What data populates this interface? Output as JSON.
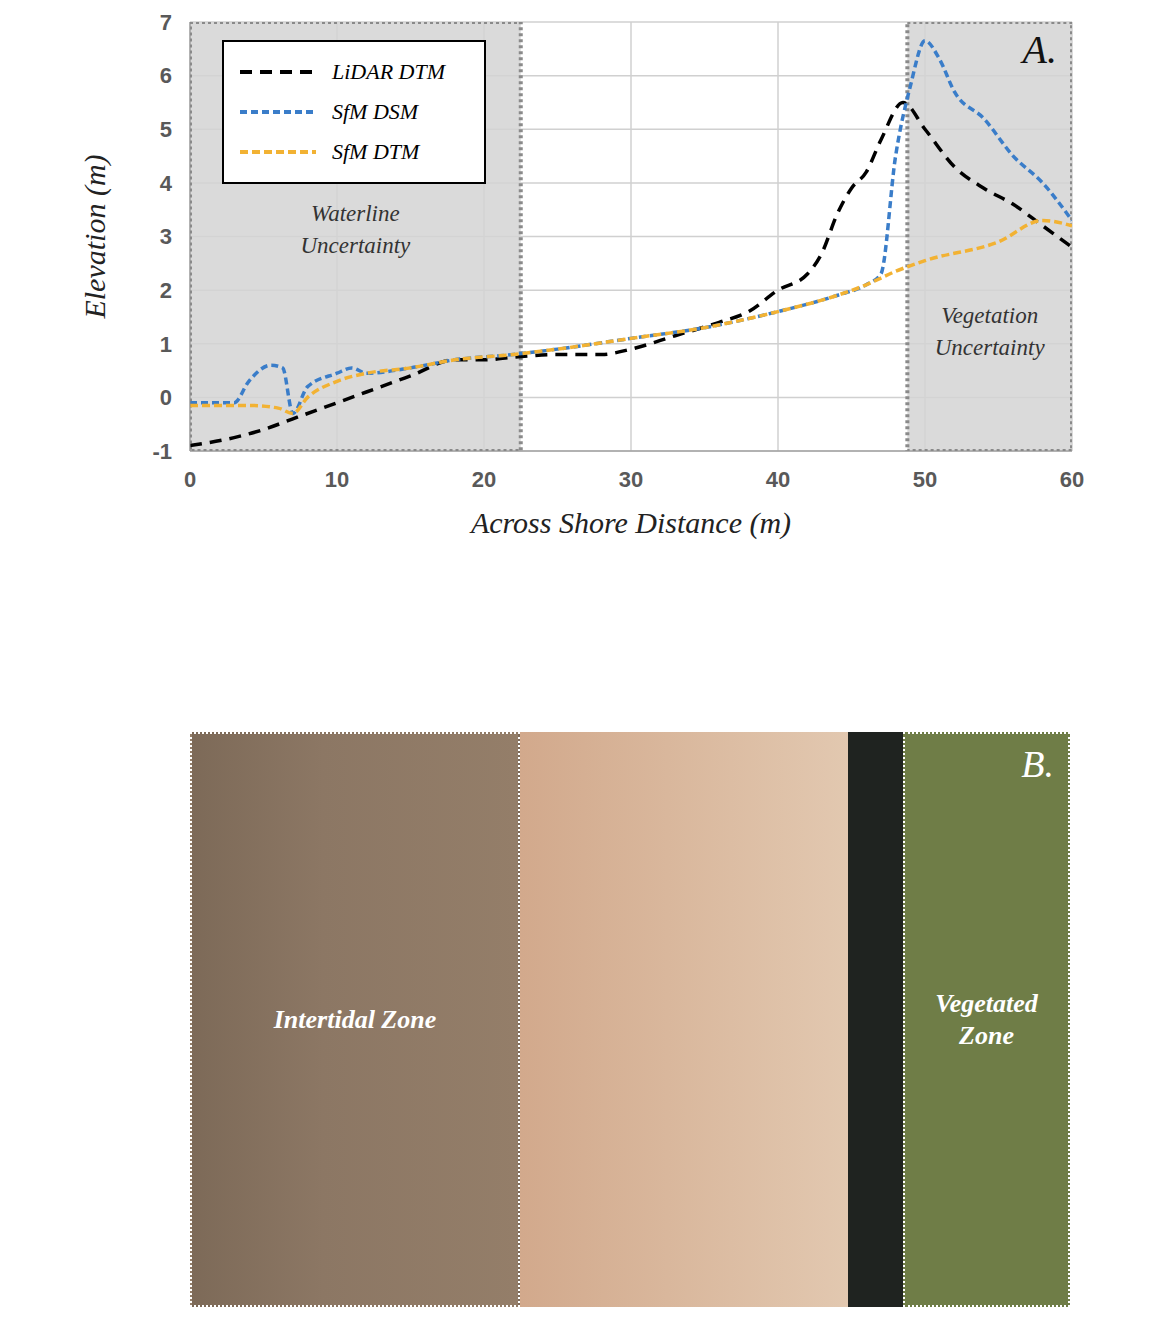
{
  "chart_data": {
    "type": "line",
    "panel_label": "A.",
    "x_label": "Across Shore Distance (m)",
    "y_label": "Elevation (m)",
    "xlim": [
      0,
      60
    ],
    "xticks": [
      0,
      10,
      20,
      30,
      40,
      50,
      60
    ],
    "ylim": [
      -1,
      7
    ],
    "yticks": [
      -1,
      0,
      1,
      2,
      3,
      4,
      5,
      6,
      7
    ],
    "grid": true,
    "legend": "upper left",
    "regions": [
      {
        "label": "Waterline Uncertainty",
        "x": [
          0,
          22.5
        ]
      },
      {
        "label": "Vegetation Uncertainty",
        "x": [
          48.8,
          60
        ]
      }
    ],
    "series": [
      {
        "name": "LiDAR DTM",
        "color": "#000000",
        "line_style": "dashed",
        "x": [
          0,
          3,
          5,
          7,
          10,
          12,
          15,
          18,
          20,
          22,
          25,
          28,
          30,
          33,
          36,
          38,
          40,
          42,
          43,
          44,
          45,
          46,
          47,
          48.5,
          50,
          52,
          54,
          56,
          58,
          60
        ],
        "values": [
          -0.9,
          -0.75,
          -0.6,
          -0.4,
          -0.1,
          0.1,
          0.4,
          0.7,
          0.7,
          0.75,
          0.8,
          0.8,
          0.9,
          1.15,
          1.4,
          1.6,
          2.0,
          2.3,
          2.7,
          3.4,
          3.9,
          4.2,
          4.8,
          5.5,
          5.0,
          4.3,
          3.9,
          3.6,
          3.2,
          2.8
        ]
      },
      {
        "name": "SfM DSM",
        "color": "#3a7dc9",
        "line_style": "dashed",
        "x": [
          0,
          3,
          4,
          5.5,
          6.3,
          7,
          8,
          10,
          11,
          12,
          15,
          18,
          22,
          25,
          30,
          35,
          40,
          44,
          46,
          47,
          48,
          49,
          50,
          51,
          52,
          54,
          56,
          58,
          60
        ],
        "values": [
          -0.1,
          -0.1,
          0.3,
          0.6,
          0.55,
          -0.3,
          0.2,
          0.45,
          0.55,
          0.45,
          0.55,
          0.7,
          0.8,
          0.9,
          1.1,
          1.3,
          1.6,
          1.9,
          2.1,
          2.3,
          4.5,
          5.8,
          6.65,
          6.3,
          5.7,
          5.2,
          4.5,
          4.0,
          3.3
        ]
      },
      {
        "name": "SfM DTM",
        "color": "#f2b233",
        "line_style": "dashed",
        "x": [
          0,
          4,
          6,
          7,
          8,
          10,
          12,
          15,
          18,
          22,
          25,
          30,
          35,
          40,
          44,
          46,
          48,
          50,
          55,
          58,
          60
        ],
        "values": [
          -0.15,
          -0.15,
          -0.2,
          -0.3,
          0.0,
          0.3,
          0.45,
          0.55,
          0.7,
          0.8,
          0.9,
          1.1,
          1.3,
          1.6,
          1.9,
          2.1,
          2.35,
          2.55,
          2.9,
          3.3,
          3.2
        ]
      }
    ]
  },
  "photo": {
    "panel_label": "B.",
    "zones": [
      "Intertidal Zone",
      "Vegetated Zone"
    ]
  }
}
